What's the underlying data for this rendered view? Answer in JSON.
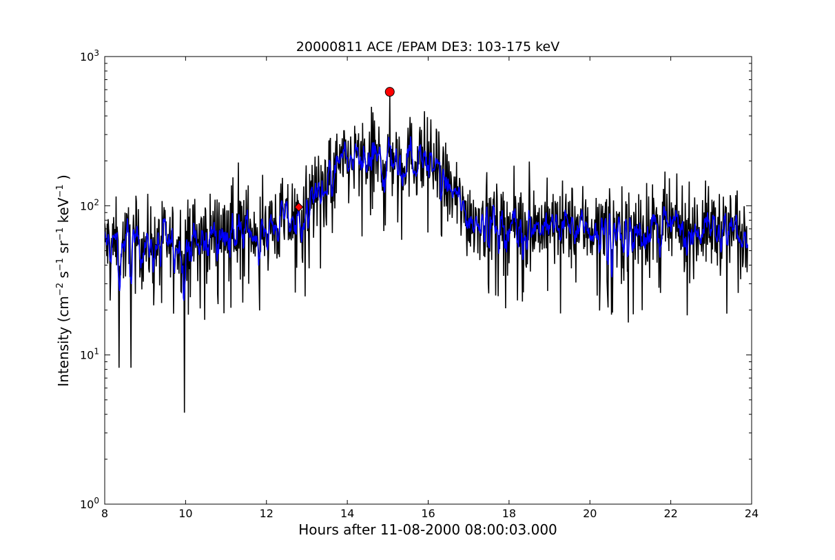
{
  "chart_data": {
    "type": "line",
    "title": "20000811 ACE /EPAM DE3: 103-175 keV",
    "xlabel": "Hours after 11-08-2000 08:00:03.000",
    "ylabel": "Intensity (cm⁻² s⁻¹ sr⁻¹ keV⁻¹ )",
    "ylabel_parts": {
      "prefix": "Intensity (cm",
      "exp_cm": "−2",
      "s": " s",
      "exp_s": "−1",
      "sr": " sr",
      "exp_sr": "−1",
      "kev": " keV",
      "exp_kev": "−1",
      "suffix": " )"
    },
    "xlim": [
      8,
      24
    ],
    "ylim": [
      1,
      1000
    ],
    "yscale": "log",
    "grid": false,
    "x_ticks": [
      8,
      10,
      12,
      14,
      16,
      18,
      20,
      22,
      24
    ],
    "x_tick_labels": [
      "8",
      "10",
      "12",
      "14",
      "16",
      "18",
      "20",
      "22",
      "24"
    ],
    "y_ticks": [
      1,
      10,
      100,
      1000
    ],
    "y_tick_labels": [
      {
        "base": "10",
        "exp": "0"
      },
      {
        "base": "10",
        "exp": "1"
      },
      {
        "base": "10",
        "exp": "2"
      },
      {
        "base": "10",
        "exp": "3"
      }
    ],
    "series": [
      {
        "color": "#000000",
        "style": "raw intensity (noisy)",
        "envelope": [
          {
            "x": 8.0,
            "median": 55
          },
          {
            "x": 9.0,
            "median": 55
          },
          {
            "x": 10.0,
            "median": 55
          },
          {
            "x": 11.0,
            "median": 70
          },
          {
            "x": 12.0,
            "median": 70
          },
          {
            "x": 12.8,
            "median": 85
          },
          {
            "x": 13.5,
            "median": 150
          },
          {
            "x": 14.0,
            "median": 200
          },
          {
            "x": 15.0,
            "median": 210
          },
          {
            "x": 16.0,
            "median": 210
          },
          {
            "x": 16.5,
            "median": 130
          },
          {
            "x": 17.0,
            "median": 85
          },
          {
            "x": 18.0,
            "median": 75
          },
          {
            "x": 20.0,
            "median": 72
          },
          {
            "x": 22.0,
            "median": 70
          },
          {
            "x": 24.0,
            "median": 70
          }
        ],
        "notable_points": [
          {
            "x": 9.97,
            "y": 4.1
          },
          {
            "x": 8.35,
            "y": 8.2
          },
          {
            "x": 8.65,
            "y": 8.2
          },
          {
            "x": 15.05,
            "y": 550
          },
          {
            "x": 11.3,
            "y": 195
          },
          {
            "x": 18.5,
            "y": 198
          },
          {
            "x": 20.95,
            "y": 16.5
          }
        ]
      },
      {
        "color": "#0000ff",
        "style": "smoothed intensity",
        "envelope": [
          {
            "x": 8.0,
            "median": 55
          },
          {
            "x": 9.0,
            "median": 55
          },
          {
            "x": 10.0,
            "median": 55
          },
          {
            "x": 11.0,
            "median": 70
          },
          {
            "x": 12.0,
            "median": 70
          },
          {
            "x": 12.8,
            "median": 85
          },
          {
            "x": 13.5,
            "median": 150
          },
          {
            "x": 14.0,
            "median": 200
          },
          {
            "x": 15.0,
            "median": 210
          },
          {
            "x": 16.0,
            "median": 210
          },
          {
            "x": 16.5,
            "median": 130
          },
          {
            "x": 17.0,
            "median": 85
          },
          {
            "x": 18.0,
            "median": 75
          },
          {
            "x": 20.0,
            "median": 72
          },
          {
            "x": 22.0,
            "median": 70
          },
          {
            "x": 24.0,
            "median": 70
          }
        ]
      }
    ],
    "markers": [
      {
        "x": 12.8,
        "y": 98,
        "shape": "diamond",
        "color": "#ff0000"
      },
      {
        "x": 15.05,
        "y": 580,
        "shape": "circle",
        "color": "#ff0000"
      }
    ]
  }
}
